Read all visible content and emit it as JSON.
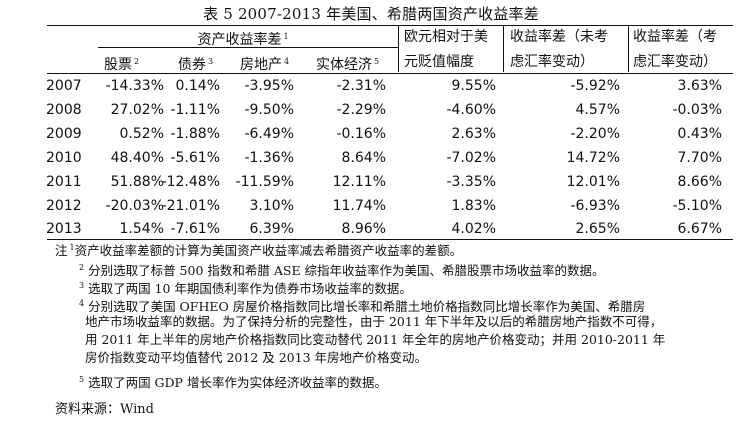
{
  "title": "表 5 2007-2013 年美国、希腊两国资产收益率差",
  "header": {
    "group_label": "资产收益率差",
    "group_sup": "1",
    "sub_cols": [
      {
        "label": "股票",
        "sup": "2"
      },
      {
        "label": "债券",
        "sup": "3"
      },
      {
        "label": "房地产",
        "sup": "4"
      },
      {
        "label": "实体经济",
        "sup": "5"
      }
    ],
    "col5": [
      "欧元相对于美",
      "元贬值幅度"
    ],
    "col6": [
      "收益率差（未考",
      "虑汇率变动）"
    ],
    "col7": [
      "收益率差（考",
      "虑汇率变动）"
    ]
  },
  "rows": [
    {
      "year": "2007",
      "values": [
        "-14.33%",
        "0.14%",
        "-3.95%",
        "-2.31%",
        "9.55%",
        "-5.92%",
        "3.63%"
      ]
    },
    {
      "year": "2008",
      "values": [
        "27.02%",
        "-1.11%",
        "-9.50%",
        "-2.29%",
        "-4.60%",
        "4.57%",
        "-0.03%"
      ]
    },
    {
      "year": "2009",
      "values": [
        "0.52%",
        "-1.88%",
        "-6.49%",
        "-0.16%",
        "2.63%",
        "-2.20%",
        "0.43%"
      ]
    },
    {
      "year": "2010",
      "values": [
        "48.40%",
        "-5.61%",
        "-1.36%",
        "8.64%",
        "-7.02%",
        "14.72%",
        "7.70%"
      ]
    },
    {
      "year": "2011",
      "values": [
        "51.88%",
        "-12.48%",
        "-11.59%",
        "12.11%",
        "-3.35%",
        "12.01%",
        "8.66%"
      ]
    },
    {
      "year": "2012",
      "values": [
        "-20.03%",
        "-21.01%",
        "3.10%",
        "11.74%",
        "1.83%",
        "-6.93%",
        "-5.10%"
      ]
    },
    {
      "year": "2013",
      "values": [
        "1.54%",
        "-7.61%",
        "6.39%",
        "8.96%",
        "4.02%",
        "2.65%",
        "6.67%"
      ]
    }
  ],
  "notes": {
    "prefix": "注",
    "n1_sup": "1",
    "n1": "资产收益率差额的计算为美国资产收益率减去希腊资产收益率的差额。",
    "n2_sup": "2",
    "n2": "分别选取了标普 500 指数和希腊 ASE 综指年收益率作为美国、希腊股票市场收益率的数据。",
    "n3_sup": "3",
    "n3": "选取了两国 10 年期国债利率作为债券市场收益率的数据。",
    "n4_sup": "4",
    "n4_lines": [
      "分别选取了美国 OFHEO 房屋价格指数同比增长率和希腊土地价格指数同比增长率作为美国、希腊房",
      "地产市场收益率的数据。为了保持分析的完整性，由于 2011 年下半年及以后的希腊房地产指数不可得，",
      "用 2011 年上半年的房地产价格指数同比变动替代 2011 年全年的房地产价格变动；并用 2010-2011 年",
      "房价指数变动平均值替代 2012 及 2013 年房地产价格变动。"
    ],
    "n5_sup": "5",
    "n5": "选取了两国 GDP 增长率作为实体经济收益率的数据。"
  },
  "source": "资料来源：Wind"
}
